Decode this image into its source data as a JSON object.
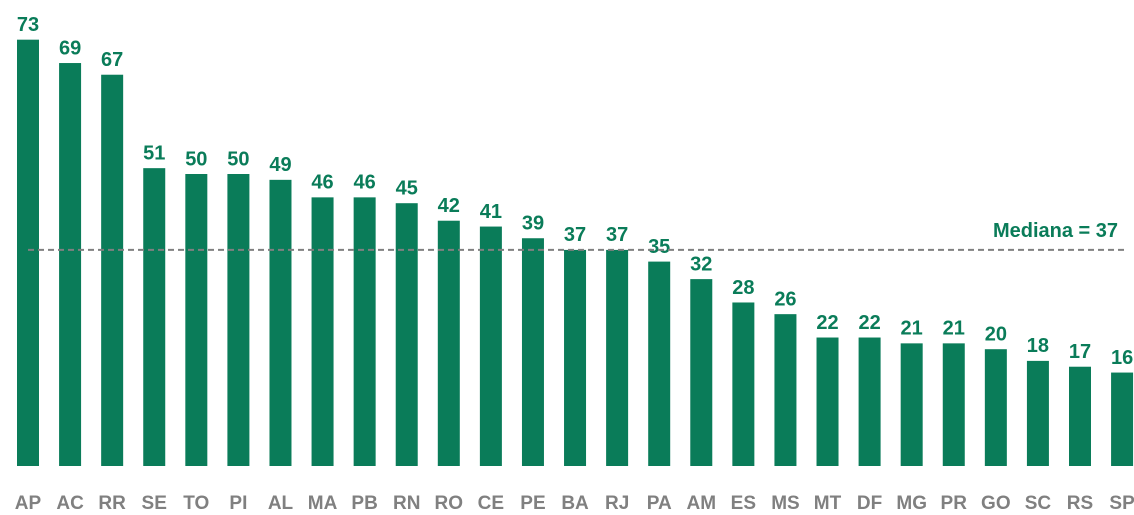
{
  "chart_data": {
    "type": "bar",
    "categories": [
      "AP",
      "AC",
      "RR",
      "SE",
      "TO",
      "PI",
      "AL",
      "MA",
      "PB",
      "RN",
      "RO",
      "CE",
      "PE",
      "BA",
      "RJ",
      "PA",
      "AM",
      "ES",
      "MS",
      "MT",
      "DF",
      "MG",
      "PR",
      "GO",
      "SC",
      "RS",
      "SP"
    ],
    "values": [
      73,
      69,
      67,
      51,
      50,
      50,
      49,
      46,
      46,
      45,
      42,
      41,
      39,
      37,
      37,
      35,
      32,
      28,
      26,
      22,
      22,
      21,
      21,
      20,
      18,
      17,
      16
    ],
    "color": "#0a7c59",
    "ylim": [
      0,
      75
    ],
    "median_line": 37,
    "annotation": "Mediana = 37"
  }
}
